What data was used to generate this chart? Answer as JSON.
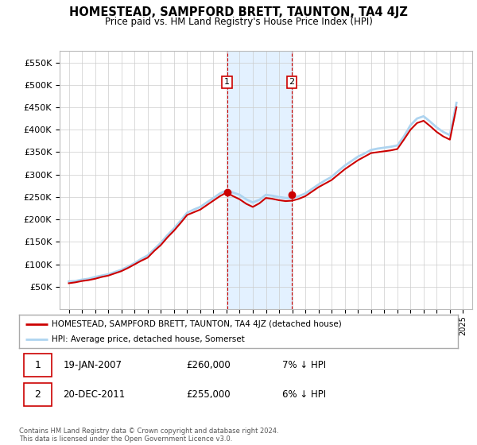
{
  "title": "HOMESTEAD, SAMPFORD BRETT, TAUNTON, TA4 4JZ",
  "subtitle": "Price paid vs. HM Land Registry's House Price Index (HPI)",
  "legend_line1": "HOMESTEAD, SAMPFORD BRETT, TAUNTON, TA4 4JZ (detached house)",
  "legend_line2": "HPI: Average price, detached house, Somerset",
  "annotation1_label": "1",
  "annotation1_date": "19-JAN-2007",
  "annotation1_price": "£260,000",
  "annotation1_hpi": "7% ↓ HPI",
  "annotation2_label": "2",
  "annotation2_date": "20-DEC-2011",
  "annotation2_price": "£255,000",
  "annotation2_hpi": "6% ↓ HPI",
  "footer": "Contains HM Land Registry data © Crown copyright and database right 2024.\nThis data is licensed under the Open Government Licence v3.0.",
  "ylim": [
    0,
    575000
  ],
  "yticks": [
    50000,
    100000,
    150000,
    200000,
    250000,
    300000,
    350000,
    400000,
    450000,
    500000,
    550000
  ],
  "hpi_color": "#aed4f0",
  "price_color": "#cc0000",
  "shade_color": "#ddeeff",
  "annotation_box_color": "#cc0000",
  "sale1_year": 2007.05,
  "sale1_price": 260000,
  "sale2_year": 2011.97,
  "sale2_price": 255000,
  "hpi_data": {
    "years": [
      1995.0,
      1995.5,
      1996.0,
      1996.5,
      1997.0,
      1997.5,
      1998.0,
      1998.5,
      1999.0,
      1999.5,
      2000.0,
      2000.5,
      2001.0,
      2001.5,
      2002.0,
      2002.5,
      2003.0,
      2003.5,
      2004.0,
      2004.5,
      2005.0,
      2005.5,
      2006.0,
      2006.5,
      2007.0,
      2007.5,
      2008.0,
      2008.5,
      2009.0,
      2009.5,
      2010.0,
      2010.5,
      2011.0,
      2011.5,
      2012.0,
      2012.5,
      2013.0,
      2013.5,
      2014.0,
      2014.5,
      2015.0,
      2015.5,
      2016.0,
      2016.5,
      2017.0,
      2017.5,
      2018.0,
      2018.5,
      2019.0,
      2019.5,
      2020.0,
      2020.5,
      2021.0,
      2021.5,
      2022.0,
      2022.5,
      2023.0,
      2023.5,
      2024.0,
      2024.5
    ],
    "values": [
      62000,
      63000,
      66000,
      68000,
      72000,
      75000,
      78000,
      83000,
      88000,
      95000,
      103000,
      112000,
      120000,
      134000,
      148000,
      165000,
      180000,
      197000,
      215000,
      222000,
      228000,
      238000,
      248000,
      258000,
      265000,
      260000,
      255000,
      245000,
      238000,
      244000,
      255000,
      253000,
      250000,
      248000,
      248000,
      252000,
      258000,
      268000,
      278000,
      287000,
      295000,
      308000,
      320000,
      330000,
      340000,
      347000,
      355000,
      358000,
      360000,
      362000,
      365000,
      385000,
      410000,
      425000,
      430000,
      418000,
      405000,
      395000,
      388000,
      460000
    ]
  },
  "price_data": {
    "years": [
      1995.0,
      1995.5,
      1996.0,
      1996.5,
      1997.0,
      1997.5,
      1998.0,
      1998.5,
      1999.0,
      1999.5,
      2000.0,
      2000.5,
      2001.0,
      2001.5,
      2002.0,
      2002.5,
      2003.0,
      2003.5,
      2004.0,
      2004.5,
      2005.0,
      2005.5,
      2006.0,
      2006.5,
      2007.0,
      2007.5,
      2008.0,
      2008.5,
      2009.0,
      2009.5,
      2010.0,
      2010.5,
      2011.0,
      2011.5,
      2012.0,
      2012.5,
      2013.0,
      2013.5,
      2014.0,
      2014.5,
      2015.0,
      2015.5,
      2016.0,
      2016.5,
      2017.0,
      2017.5,
      2018.0,
      2018.5,
      2019.0,
      2019.5,
      2020.0,
      2020.5,
      2021.0,
      2021.5,
      2022.0,
      2022.5,
      2023.0,
      2023.5,
      2024.0,
      2024.5
    ],
    "values": [
      58000,
      60000,
      63000,
      65000,
      68000,
      72000,
      75000,
      80000,
      85000,
      92000,
      100000,
      108000,
      115000,
      130000,
      143000,
      160000,
      175000,
      192000,
      210000,
      216000,
      222000,
      232000,
      242000,
      252000,
      260000,
      252000,
      245000,
      235000,
      228000,
      236000,
      248000,
      246000,
      243000,
      241000,
      242000,
      246000,
      252000,
      262000,
      272000,
      280000,
      288000,
      300000,
      312000,
      322000,
      332000,
      340000,
      348000,
      350000,
      352000,
      354000,
      357000,
      378000,
      400000,
      415000,
      420000,
      408000,
      395000,
      385000,
      378000,
      450000
    ]
  }
}
